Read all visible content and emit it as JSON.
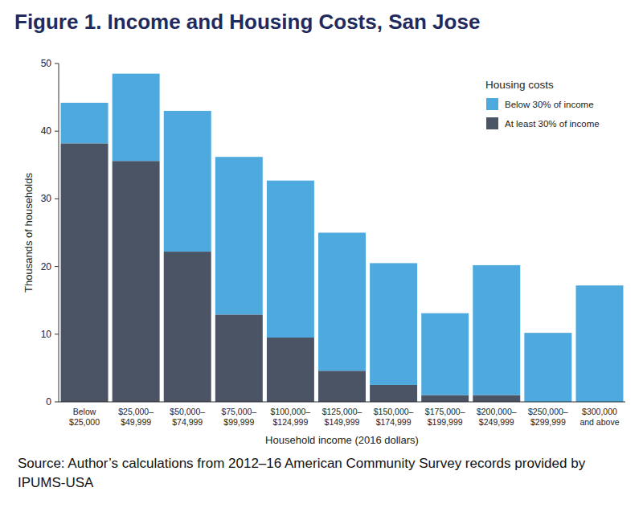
{
  "chart_data": {
    "type": "bar",
    "stacked": true,
    "title": "Figure 1. Income and Housing Costs, San Jose",
    "x_label": "Household income (2016 dollars)",
    "y_label": "Thousands of households",
    "legend_title": "Housing costs",
    "source": "Source: Author’s calculations from 2012–16 American Community Survey records provided by IPUMS-USA",
    "categories": [
      "Below $25,000",
      "$25,000–$49,999",
      "$50,000–$74,999",
      "$75,000–$99,999",
      "$100,000–$124,999",
      "$125,000–$149,999",
      "$150,000–$174,999",
      "$175,000–$199,999",
      "$200,000–$249,999",
      "$250,000–$299,999",
      "$300,000 and above"
    ],
    "series": [
      {
        "name": "At least 30% of income",
        "color": "#4b5465",
        "values": [
          38.2,
          35.6,
          22.2,
          12.9,
          9.5,
          4.6,
          2.5,
          1.0,
          1.0,
          0,
          0
        ]
      },
      {
        "name": "Below 30% of income",
        "color": "#4eaade",
        "values": [
          6.0,
          12.9,
          20.8,
          23.3,
          23.2,
          20.4,
          18.0,
          12.1,
          19.2,
          10.2,
          17.2
        ]
      }
    ],
    "ylim": [
      0,
      50
    ],
    "yticks": [
      0,
      10,
      20,
      30,
      40,
      50
    ],
    "grid": false,
    "legend": "upper right"
  }
}
